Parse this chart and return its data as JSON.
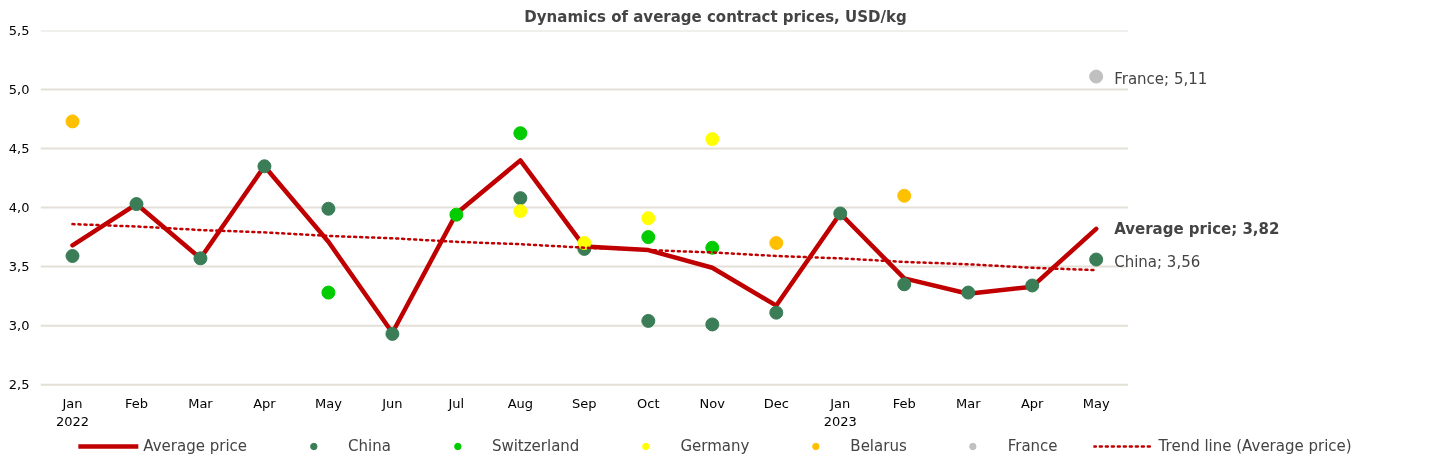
{
  "chart_data": {
    "type": "line",
    "title": "Dynamics of average contract prices, USD/kg",
    "categories": [
      "Jan\n2022",
      "Feb",
      "Mar",
      "Apr",
      "May",
      "Jun",
      "Jul",
      "Aug",
      "Sep",
      "Oct",
      "Nov",
      "Dec",
      "Jan\n2023",
      "Feb",
      "Mar",
      "Apr",
      "May"
    ],
    "series": [
      {
        "name": "Average price",
        "marker": "none",
        "color": "#c00000",
        "values": [
          3.68,
          4.03,
          3.57,
          4.35,
          3.71,
          2.94,
          3.95,
          4.4,
          3.67,
          3.64,
          3.49,
          3.17,
          3.95,
          3.4,
          3.27,
          3.33,
          3.82
        ],
        "value_labels": [
          null,
          null,
          null,
          null,
          null,
          null,
          null,
          null,
          null,
          null,
          null,
          null,
          null,
          null,
          null,
          null,
          "Average price; 3,82"
        ]
      },
      {
        "name": "China",
        "type": "scatter",
        "color": "#3a7d57",
        "values": [
          3.59,
          4.03,
          3.57,
          4.35,
          3.99,
          2.93,
          null,
          4.08,
          3.65,
          3.04,
          3.01,
          3.11,
          3.95,
          3.35,
          3.28,
          3.34,
          3.56
        ],
        "value_labels": [
          null,
          null,
          null,
          null,
          null,
          null,
          null,
          null,
          null,
          null,
          null,
          null,
          null,
          null,
          null,
          null,
          "China; 3,56"
        ]
      },
      {
        "name": "Switzerland",
        "type": "scatter",
        "color": "#00cc00",
        "values": [
          null,
          null,
          null,
          null,
          3.28,
          null,
          3.94,
          4.63,
          null,
          3.75,
          3.66,
          null,
          null,
          null,
          null,
          null,
          null
        ]
      },
      {
        "name": "Germany",
        "type": "scatter",
        "color": "#ffff00",
        "values": [
          null,
          null,
          null,
          null,
          null,
          null,
          null,
          3.97,
          3.7,
          3.91,
          4.58,
          null,
          null,
          null,
          null,
          null,
          null
        ]
      },
      {
        "name": "Belarus",
        "type": "scatter",
        "color": "#ffc000",
        "values": [
          4.73,
          null,
          null,
          null,
          null,
          null,
          null,
          null,
          null,
          null,
          null,
          3.7,
          null,
          4.1,
          null,
          null,
          null
        ]
      },
      {
        "name": "France",
        "type": "scatter",
        "color": "#c0c0c0",
        "values": [
          null,
          null,
          null,
          null,
          null,
          null,
          null,
          null,
          null,
          null,
          null,
          null,
          null,
          null,
          null,
          null,
          5.11
        ],
        "value_labels": [
          null,
          null,
          null,
          null,
          null,
          null,
          null,
          null,
          null,
          null,
          null,
          null,
          null,
          null,
          null,
          null,
          "France; 5,11"
        ]
      },
      {
        "name": "Trend line (Average price)",
        "type": "line",
        "marker": "none",
        "line_style": "dotted",
        "color": "#c00000",
        "values": [
          3.86,
          3.84,
          3.81,
          3.79,
          3.76,
          3.74,
          3.71,
          3.69,
          3.66,
          3.64,
          3.62,
          3.59,
          3.57,
          3.54,
          3.52,
          3.49,
          3.47
        ]
      }
    ],
    "ylim": [
      2.5,
      5.5
    ],
    "yticks": [
      {
        "value": 2.5,
        "label": "2,5"
      },
      {
        "value": 3.0,
        "label": "3,0"
      },
      {
        "value": 3.5,
        "label": "3,5"
      },
      {
        "value": 4.0,
        "label": "4,0"
      },
      {
        "value": 4.5,
        "label": "4,5"
      },
      {
        "value": 5.0,
        "label": "5,0"
      },
      {
        "value": 5.5,
        "label": "5,5"
      }
    ],
    "grid": "y",
    "legend": "bottom",
    "marker": "circle",
    "line_style": "solid"
  }
}
